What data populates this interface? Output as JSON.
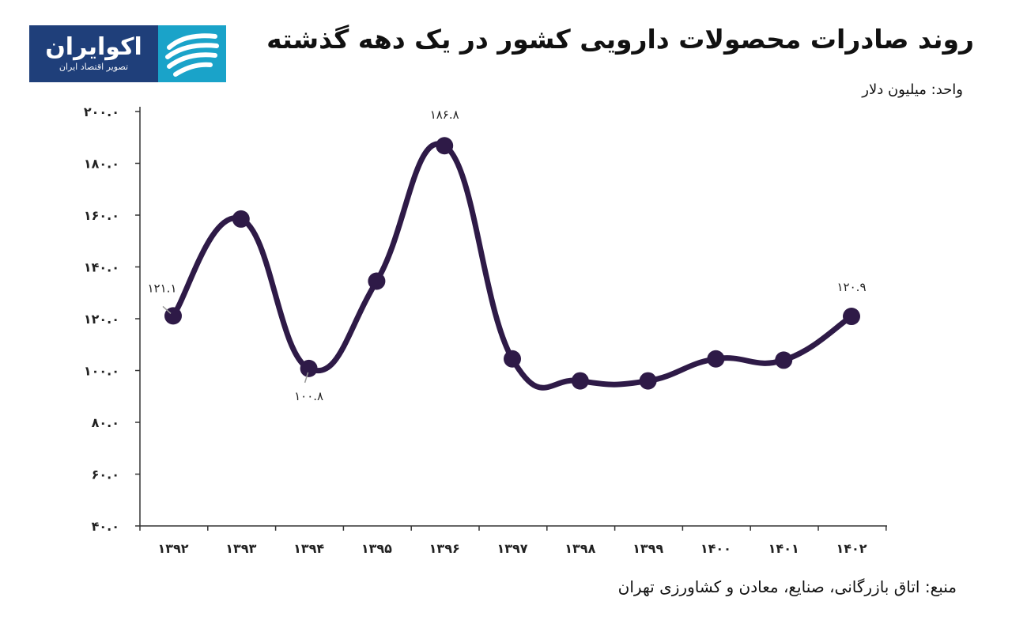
{
  "logo": {
    "name": "اکوایران",
    "tagline": "تصویر اقتصاد ایران"
  },
  "header": {
    "title": "روند صادرات محصولات دارویی کشور در یک دهه گذشته",
    "unit": "واحد: میلیون دلار"
  },
  "footer": {
    "source": "منبع: اتاق بازرگانی، صنایع، معادن و کشاورزی تهران"
  },
  "colors": {
    "line": "#2e1a47",
    "logo_dark": "#1f3f7a",
    "logo_light": "#1aa3c9"
  },
  "chart_data": {
    "type": "line",
    "title": "روند صادرات محصولات دارویی کشور در یک دهه گذشته",
    "xlabel": "",
    "ylabel": "واحد: میلیون دلار",
    "categories": [
      "۱۳۹۲",
      "۱۳۹۳",
      "۱۳۹۴",
      "۱۳۹۵",
      "۱۳۹۶",
      "۱۳۹۷",
      "۱۳۹۸",
      "۱۳۹۹",
      "۱۴۰۰",
      "۱۴۰۱",
      "۱۴۰۲"
    ],
    "values": [
      121.1,
      158.5,
      100.8,
      134.5,
      186.8,
      104.5,
      96.0,
      96.0,
      104.5,
      104.0,
      120.9
    ],
    "data_labels": [
      {
        "index": 0,
        "text": "۱۲۱.۱"
      },
      {
        "index": 2,
        "text": "۱۰۰.۸"
      },
      {
        "index": 4,
        "text": "۱۸۶.۸"
      },
      {
        "index": 10,
        "text": "۱۲۰.۹"
      }
    ],
    "ylim": [
      40,
      200
    ],
    "yticks": [
      40,
      60,
      80,
      100,
      120,
      140,
      160,
      180,
      200
    ],
    "ytick_labels": [
      "۴۰.۰",
      "۶۰.۰",
      "۸۰.۰",
      "۱۰۰.۰",
      "۱۲۰.۰",
      "۱۴۰.۰",
      "۱۶۰.۰",
      "۱۸۰.۰",
      "۲۰۰.۰"
    ],
    "grid": false,
    "smooth": true
  }
}
